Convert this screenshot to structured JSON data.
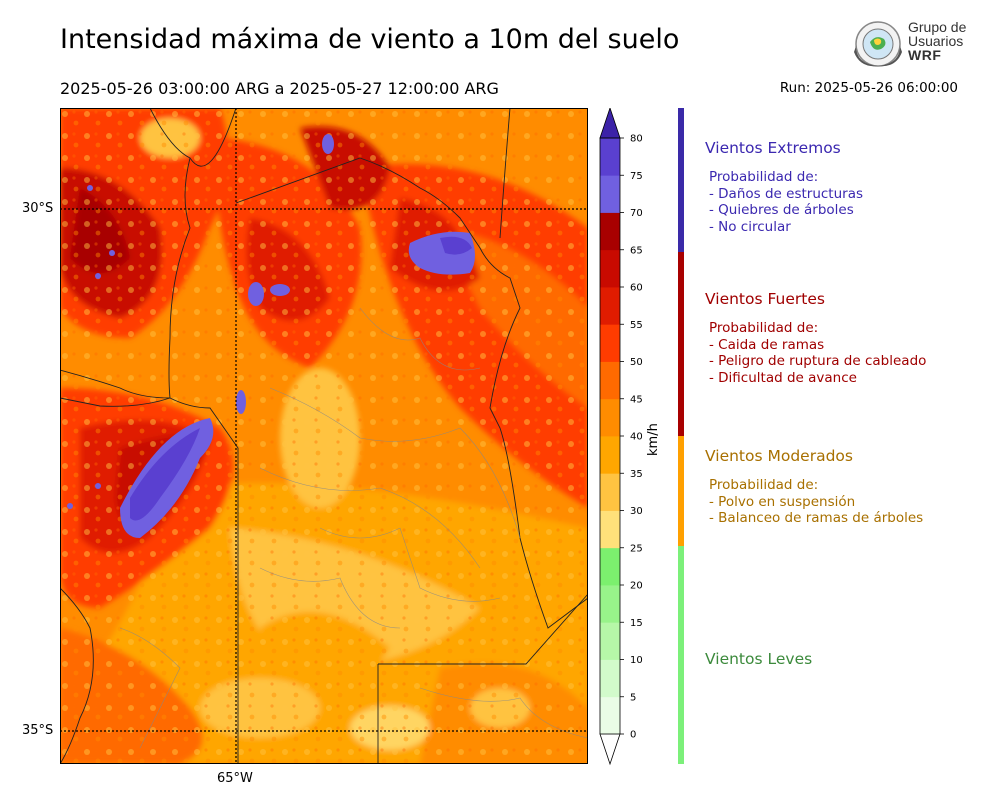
{
  "header": {
    "title": "Intensidad máxima de viento a 10m del suelo",
    "period": "2025-05-26 03:00:00 ARG  a  2025-05-27 12:00:00 ARG",
    "run": "Run: 2025-05-26 06:00:00"
  },
  "logo": {
    "line1": "Grupo de",
    "line2": "Usuarios",
    "line3": "WRF"
  },
  "map": {
    "lat_labels": [
      "30°S",
      "35°S"
    ],
    "lon_labels": [
      "65°W"
    ]
  },
  "colorbar": {
    "unit": "km/h",
    "ticks": [
      "0",
      "5",
      "10",
      "15",
      "20",
      "25",
      "30",
      "35",
      "40",
      "45",
      "50",
      "55",
      "60",
      "65",
      "70",
      "75",
      "80"
    ],
    "colors": [
      "#eafde6",
      "#d2fbcb",
      "#b6f7a8",
      "#98f38a",
      "#7cf06e",
      "#ffe17a",
      "#ffc341",
      "#ffa600",
      "#ff8c00",
      "#ff6a00",
      "#ff3c00",
      "#e01c00",
      "#c80a00",
      "#a80000",
      "#7060e0",
      "#5a40d0",
      "#4a2ab8"
    ],
    "extend_low": "#ffffff",
    "extend_high": "#3c22a8"
  },
  "categories": [
    {
      "name": "Vientos Extremos",
      "color": "#3b28b0",
      "desc": [
        "Probabilidad de:",
        "- Daños de estructuras",
        "- Quiebres de árboles",
        "- No circular"
      ]
    },
    {
      "name": "Vientos Fuertes",
      "color": "#a00000",
      "desc": [
        "Probabilidad de:",
        "- Caida de ramas",
        "- Peligro de ruptura de cableado",
        "- Dificultad de avance"
      ]
    },
    {
      "name": "Vientos Moderados",
      "color": "#a87000",
      "desc": [
        "Probabilidad de:",
        "- Polvo en suspensión",
        "- Balanceo de ramas de árboles"
      ]
    },
    {
      "name": "Vientos Leves",
      "color": "#3c8a3c",
      "desc": []
    }
  ],
  "strip_colors": [
    "#3a2aa8",
    "#a80000",
    "#ffa000",
    "#7cf07a"
  ]
}
